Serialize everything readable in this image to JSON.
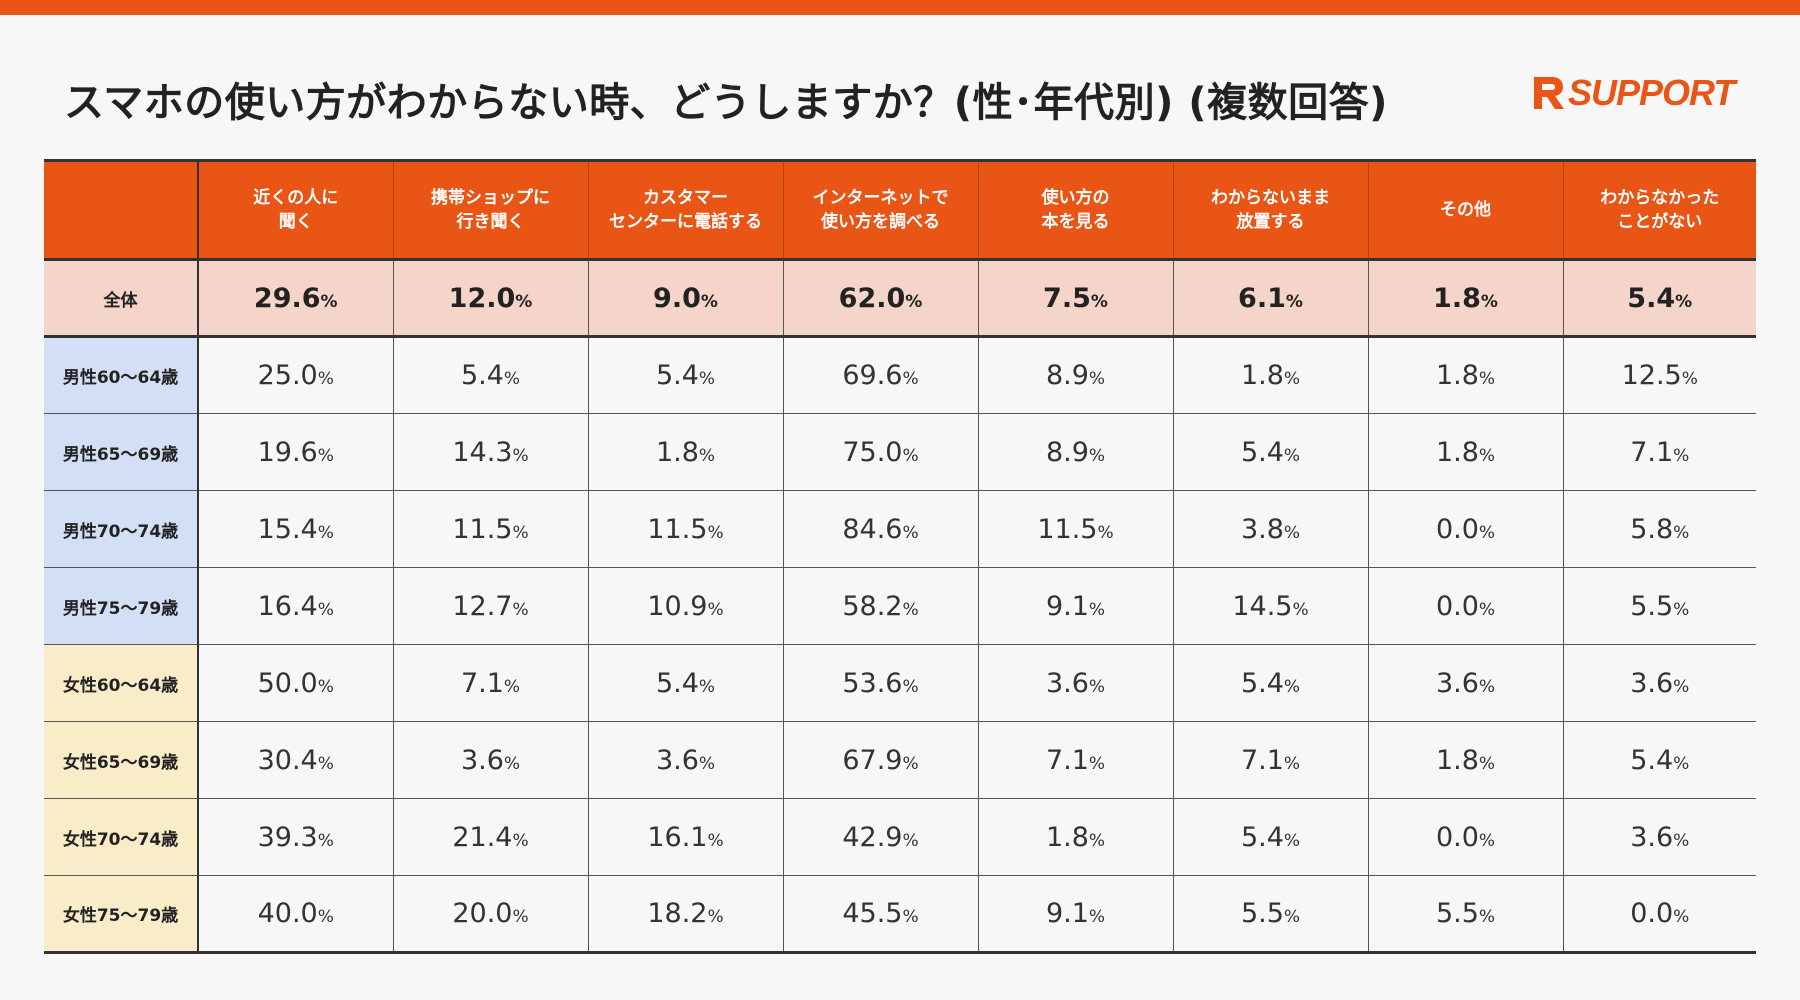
{
  "title": "スマホの使い方がわからない時、どうしますか？(性･年代別) (複数回答)",
  "logo": {
    "text": "SUPPORT",
    "mark": "R",
    "color": "#e95515"
  },
  "colors": {
    "accent": "#e95515",
    "total_row": "#f5d5c9",
    "male_label": "#d3dff5",
    "female_label": "#f9edc9"
  },
  "chart_data": {
    "type": "table",
    "title": "スマホの使い方がわからない時、どうしますか？(性･年代別) (複数回答)",
    "unit": "%",
    "columns": [
      "近くの人に\n聞く",
      "携帯ショップに\n行き聞く",
      "カスタマー\nセンターに電話する",
      "インターネットで\n使い方を調べる",
      "使い方の\n本を見る",
      "わからないまま\n放置する",
      "その他",
      "わからなかった\nことがない"
    ],
    "rows": [
      {
        "label": "全体",
        "group": "total",
        "values": [
          "29.6",
          "12.0",
          "9.0",
          "62.0",
          "7.5",
          "6.1",
          "1.8",
          "5.4"
        ]
      },
      {
        "label": "男性60～64歳",
        "group": "male",
        "values": [
          "25.0",
          "5.4",
          "5.4",
          "69.6",
          "8.9",
          "1.8",
          "1.8",
          "12.5"
        ]
      },
      {
        "label": "男性65～69歳",
        "group": "male",
        "values": [
          "19.6",
          "14.3",
          "1.8",
          "75.0",
          "8.9",
          "5.4",
          "1.8",
          "7.1"
        ]
      },
      {
        "label": "男性70～74歳",
        "group": "male",
        "values": [
          "15.4",
          "11.5",
          "11.5",
          "84.6",
          "11.5",
          "3.8",
          "0.0",
          "5.8"
        ]
      },
      {
        "label": "男性75～79歳",
        "group": "male",
        "values": [
          "16.4",
          "12.7",
          "10.9",
          "58.2",
          "9.1",
          "14.5",
          "0.0",
          "5.5"
        ]
      },
      {
        "label": "女性60～64歳",
        "group": "female",
        "values": [
          "50.0",
          "7.1",
          "5.4",
          "53.6",
          "3.6",
          "5.4",
          "3.6",
          "3.6"
        ]
      },
      {
        "label": "女性65～69歳",
        "group": "female",
        "values": [
          "30.4",
          "3.6",
          "3.6",
          "67.9",
          "7.1",
          "7.1",
          "1.8",
          "5.4"
        ]
      },
      {
        "label": "女性70～74歳",
        "group": "female",
        "values": [
          "39.3",
          "21.4",
          "16.1",
          "42.9",
          "1.8",
          "5.4",
          "0.0",
          "3.6"
        ]
      },
      {
        "label": "女性75～79歳",
        "group": "female",
        "values": [
          "40.0",
          "20.0",
          "18.2",
          "45.5",
          "9.1",
          "5.5",
          "5.5",
          "0.0"
        ]
      }
    ]
  }
}
